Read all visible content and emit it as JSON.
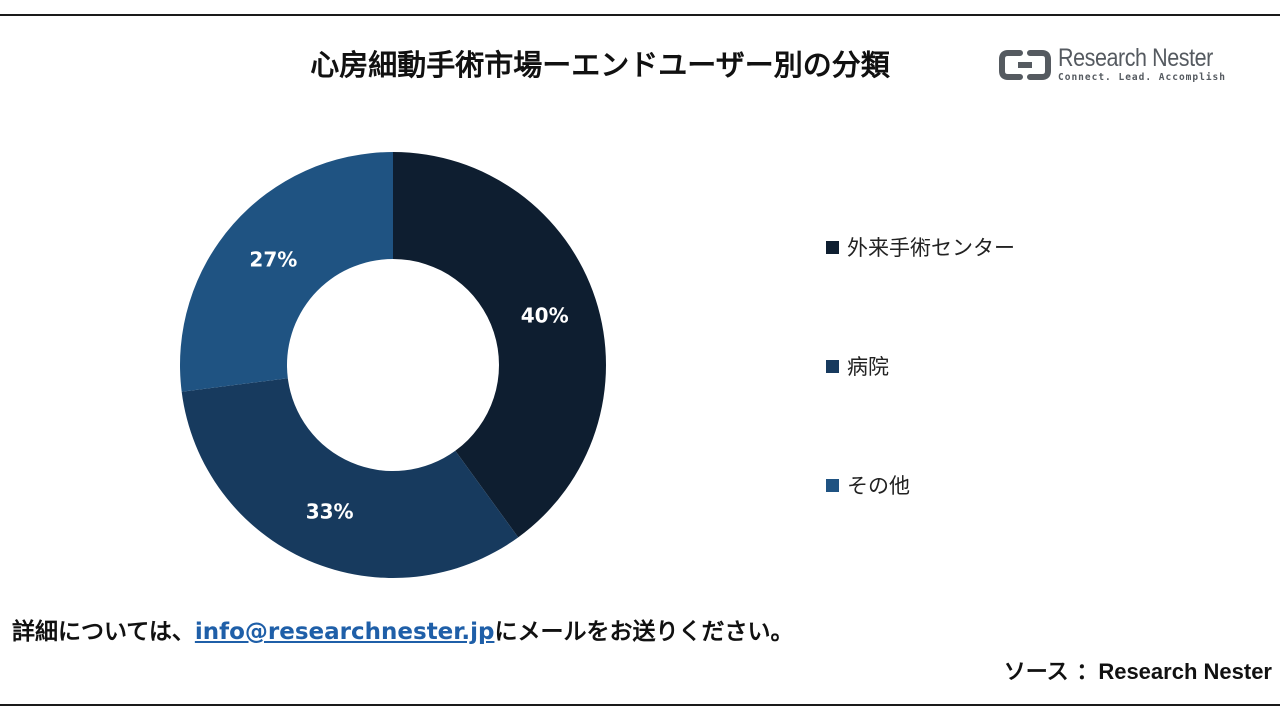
{
  "title": "心房細動手術市場ーエンドユーザー別の分類",
  "logo": {
    "name": "Research Nester",
    "tagline": "Connect. Lead. Accomplish"
  },
  "chart_data": {
    "type": "pie",
    "donut": true,
    "categories": [
      "外来手術センター",
      "病院",
      "その他"
    ],
    "values": [
      40,
      33,
      27
    ],
    "labels": [
      "40%",
      "33%",
      "27%"
    ],
    "colors": [
      "#0e1e30",
      "#173a5e",
      "#1f5382"
    ],
    "legend_position": "right",
    "start_angle_deg": 0,
    "direction": "clockwise"
  },
  "footer": {
    "prefix": "詳細については、",
    "email": "info@researchnester.jp",
    "suffix": "にメールをお送りください。"
  },
  "source": {
    "label": "ソース ：",
    "name": "Research Nester"
  }
}
